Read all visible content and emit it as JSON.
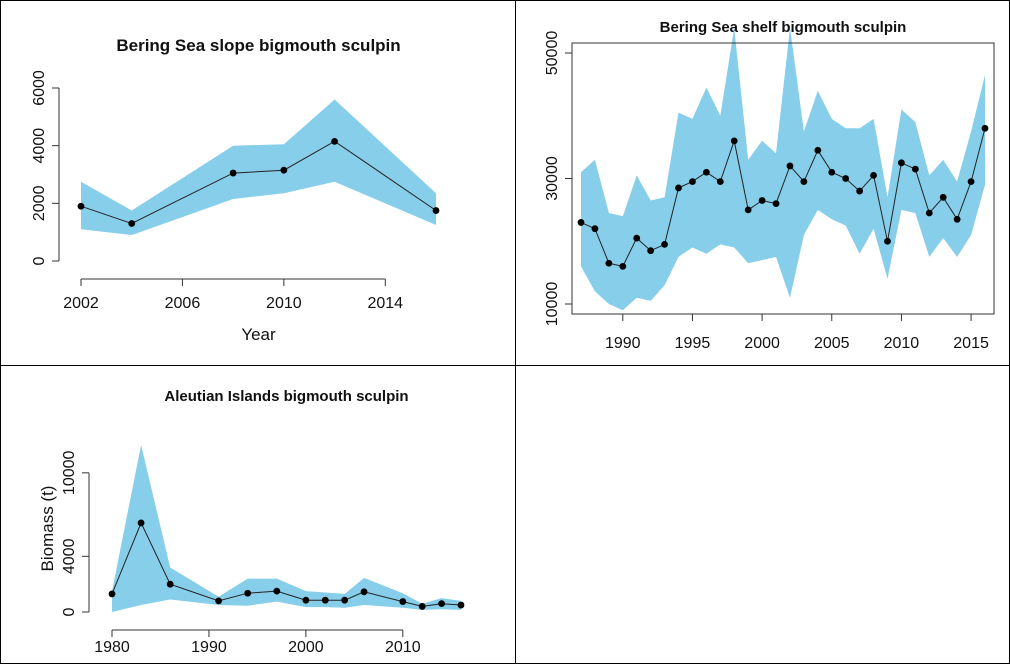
{
  "chart_data": [
    {
      "id": "slope",
      "type": "line",
      "title": "Bering Sea slope bigmouth sculpin",
      "xlabel": "Year",
      "ylabel": "",
      "xlim": [
        2002,
        2016
      ],
      "ylim": [
        0,
        6000
      ],
      "x_ticks": [
        2002,
        2006,
        2010,
        2014
      ],
      "y_ticks": [
        0,
        2000,
        4000,
        6000
      ],
      "frame": "axes-only",
      "band_color": "#87ceeb",
      "series": [
        {
          "x": [
            2002,
            2004,
            2008,
            2010,
            2012,
            2016
          ],
          "values": [
            1900,
            1300,
            3050,
            3150,
            4150,
            1750
          ],
          "lower": [
            1100,
            900,
            2150,
            2350,
            2750,
            1250
          ],
          "upper": [
            2750,
            1750,
            4000,
            4050,
            5600,
            2350
          ]
        }
      ]
    },
    {
      "id": "shelf",
      "type": "line",
      "title": "Bering Sea shelf bigmouth sculpin",
      "xlabel": "",
      "ylabel": "",
      "xlim": [
        1987,
        2016
      ],
      "ylim": [
        10000,
        50000
      ],
      "x_ticks": [
        1990,
        1995,
        2000,
        2005,
        2010,
        2015
      ],
      "y_ticks": [
        10000,
        30000,
        50000
      ],
      "frame": "box",
      "band_color": "#87ceeb",
      "series": [
        {
          "x": [
            1987,
            1988,
            1989,
            1990,
            1991,
            1992,
            1993,
            1994,
            1995,
            1996,
            1997,
            1998,
            1999,
            2000,
            2001,
            2002,
            2003,
            2004,
            2005,
            2006,
            2007,
            2008,
            2009,
            2010,
            2011,
            2012,
            2013,
            2014,
            2015,
            2016
          ],
          "values": [
            23000,
            22000,
            16500,
            16000,
            20500,
            18500,
            19500,
            28500,
            29500,
            31000,
            29500,
            36000,
            25000,
            26500,
            26000,
            32000,
            29500,
            34500,
            31000,
            30000,
            28000,
            30500,
            20000,
            32500,
            31500,
            24500,
            27000,
            23500,
            29500,
            38000
          ],
          "lower": [
            16000,
            12000,
            10000,
            9000,
            11000,
            10500,
            13000,
            17500,
            19000,
            18000,
            19500,
            19000,
            16500,
            17000,
            17500,
            11000,
            21000,
            25000,
            23500,
            22500,
            18000,
            22000,
            14000,
            25000,
            24500,
            17500,
            20500,
            17500,
            21000,
            29000
          ],
          "upper": [
            31000,
            33000,
            24500,
            24000,
            30500,
            26500,
            27000,
            40500,
            39500,
            44500,
            40000,
            54000,
            33000,
            36000,
            34000,
            54000,
            37500,
            44000,
            39500,
            38000,
            38000,
            39500,
            27000,
            41000,
            39000,
            30500,
            33000,
            29500,
            37500,
            46500
          ]
        }
      ]
    },
    {
      "id": "aleutian",
      "type": "line",
      "title": "Aleutian Islands bigmouth sculpin",
      "xlabel": "",
      "ylabel": "Biomass (t)",
      "xlim": [
        1980,
        2016
      ],
      "ylim": [
        0,
        12000
      ],
      "x_ticks": [
        1980,
        1990,
        2000,
        2010
      ],
      "y_ticks": [
        0,
        4000,
        10000
      ],
      "frame": "axes-only",
      "band_color": "#87ceeb",
      "series": [
        {
          "x": [
            1980,
            1983,
            1986,
            1991,
            1994,
            1997,
            2000,
            2002,
            2004,
            2006,
            2010,
            2012,
            2014,
            2016
          ],
          "values": [
            1300,
            6400,
            2000,
            800,
            1350,
            1500,
            850,
            850,
            850,
            1450,
            750,
            400,
            600,
            500
          ],
          "lower": [
            0,
            500,
            900,
            500,
            450,
            750,
            350,
            350,
            300,
            500,
            300,
            150,
            200,
            150
          ],
          "upper": [
            1500,
            12000,
            3200,
            1100,
            2400,
            2400,
            1500,
            1400,
            1300,
            2450,
            1350,
            600,
            1000,
            800
          ]
        }
      ]
    }
  ]
}
